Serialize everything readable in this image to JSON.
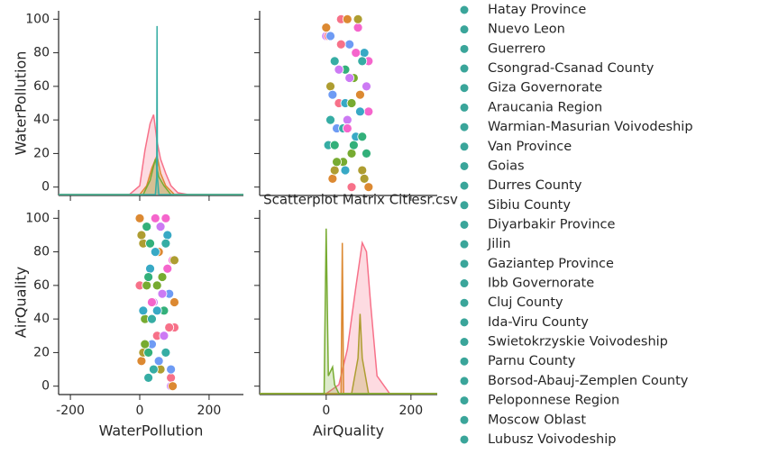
{
  "title": "Scatterplot Matrix Citiesr.csv",
  "legend": {
    "color": "#3aa59a",
    "entries": [
      "Hatay Province",
      "Nuevo Leon",
      "Guerrero",
      "Csongrad-Csanad County",
      "Giza Governorate",
      "Araucania Region",
      "Warmian-Masurian Voivodeship",
      "Van Province",
      "Goias",
      "Durres County",
      "Sibiu County",
      "Diyarbakir Province",
      "Jilin",
      "Gaziantep Province",
      "Ibb Governorate",
      "Cluj County",
      "Ida-Viru County",
      "Swietokrzyskie Voivodeship",
      "Parnu County",
      "Borsod-Abauj-Zemplen County",
      "Peloponnese Region",
      "Moscow Oblast",
      "Lubusz Voivodeship"
    ]
  },
  "chart_data": [
    {
      "type": "kde",
      "ylabel": "WaterPollution",
      "xlim": [
        -234,
        299
      ],
      "ylim": [
        -5,
        105
      ],
      "yticks": [
        0,
        20,
        40,
        60,
        80,
        100
      ],
      "density_lim": [
        0,
        1
      ],
      "series": [
        {
          "color": "#f77189",
          "x": [
            -234,
            -30,
            0,
            15,
            30,
            40,
            50,
            60,
            75,
            90,
            110,
            140,
            299
          ],
          "values": [
            0,
            0,
            0.05,
            0.25,
            0.4,
            0.45,
            0.3,
            0.2,
            0.12,
            0.05,
            0.01,
            0,
            0
          ]
        },
        {
          "color": "#dc8932",
          "x": [
            -234,
            0,
            20,
            35,
            50,
            60,
            75,
            100,
            299
          ],
          "values": [
            0,
            0,
            0.05,
            0.15,
            0.22,
            0.12,
            0.05,
            0,
            0
          ]
        },
        {
          "color": "#77ab31",
          "x": [
            -234,
            10,
            30,
            45,
            55,
            70,
            90,
            299
          ],
          "values": [
            0,
            0,
            0.08,
            0.2,
            0.1,
            0.05,
            0,
            0
          ]
        },
        {
          "color": "#36ada4",
          "x": [
            -234,
            45,
            49,
            50,
            51,
            55,
            299
          ],
          "values": [
            0,
            0,
            0.1,
            0.95,
            0.1,
            0,
            0
          ]
        }
      ]
    },
    {
      "type": "scatter",
      "xlim": [
        -157,
        262
      ],
      "ylim": [
        -5,
        105
      ],
      "size": 5,
      "palette": [
        "#f77189",
        "#dc8932",
        "#ae9d31",
        "#77ab31",
        "#33b07a",
        "#36ada4",
        "#38a9c5",
        "#6e9bf4",
        "#cc7af4",
        "#f565cc"
      ],
      "x": [
        60,
        15,
        85,
        40,
        95,
        5,
        70,
        25,
        50,
        100,
        30,
        80,
        10,
        65,
        45,
        20,
        90,
        55,
        0,
        75,
        35,
        100,
        20,
        60,
        85,
        10,
        45,
        95,
        30,
        70,
        5,
        50,
        90,
        25,
        65,
        40,
        80,
        15,
        55,
        100,
        35,
        0,
        75,
        60,
        20,
        85,
        45,
        10,
        95,
        50
      ],
      "y": [
        0,
        5,
        10,
        15,
        20,
        25,
        30,
        35,
        40,
        45,
        50,
        55,
        60,
        65,
        70,
        75,
        80,
        85,
        90,
        95,
        100,
        0,
        10,
        20,
        30,
        40,
        50,
        60,
        70,
        80,
        90,
        100,
        5,
        15,
        25,
        35,
        45,
        55,
        65,
        75,
        85,
        95,
        100,
        50,
        25,
        75,
        10,
        90,
        60,
        35
      ]
    },
    {
      "type": "scatter",
      "xlabel": "WaterPollution",
      "ylabel": "AirQuality",
      "xlim": [
        -234,
        299
      ],
      "xticks": [
        -200,
        0,
        200
      ],
      "ylim": [
        -5,
        105
      ],
      "yticks": [
        0,
        20,
        40,
        60,
        80,
        100
      ],
      "size": 5,
      "palette": [
        "#f77189",
        "#dc8932",
        "#ae9d31",
        "#77ab31",
        "#33b07a",
        "#36ada4",
        "#38a9c5",
        "#6e9bf4",
        "#cc7af4",
        "#f565cc"
      ],
      "x": [
        0,
        5,
        10,
        15,
        20,
        25,
        30,
        35,
        40,
        45,
        50,
        55,
        60,
        65,
        70,
        75,
        80,
        85,
        90,
        95,
        100,
        0,
        10,
        20,
        30,
        40,
        50,
        60,
        70,
        80,
        90,
        100,
        5,
        15,
        25,
        35,
        45,
        55,
        65,
        75,
        85,
        95,
        100,
        50,
        25,
        75,
        10,
        90,
        60,
        35
      ],
      "y": [
        60,
        15,
        85,
        40,
        95,
        5,
        70,
        25,
        50,
        100,
        30,
        80,
        10,
        65,
        45,
        20,
        90,
        55,
        0,
        75,
        35,
        100,
        20,
        60,
        85,
        10,
        45,
        95,
        30,
        70,
        5,
        50,
        90,
        25,
        65,
        40,
        80,
        15,
        55,
        100,
        35,
        0,
        75,
        60,
        20,
        85,
        45,
        10,
        95,
        50
      ]
    },
    {
      "type": "kde",
      "xlabel": "AirQuality",
      "xlim": [
        -157,
        262
      ],
      "xticks": [
        0,
        200
      ],
      "ylim": [
        -5,
        105
      ],
      "density_lim": [
        0,
        1
      ],
      "series": [
        {
          "color": "#f77189",
          "x": [
            -157,
            0,
            30,
            50,
            70,
            85,
            95,
            105,
            120,
            150,
            262
          ],
          "values": [
            0,
            0,
            0.05,
            0.25,
            0.6,
            0.85,
            0.8,
            0.5,
            0.1,
            0,
            0
          ]
        },
        {
          "color": "#dc8932",
          "x": [
            -157,
            35,
            38,
            41,
            262
          ],
          "values": [
            0,
            0,
            0.85,
            0,
            0
          ]
        },
        {
          "color": "#ae9d31",
          "x": [
            -157,
            60,
            75,
            80,
            85,
            100,
            262
          ],
          "values": [
            0,
            0,
            0.2,
            0.45,
            0.2,
            0,
            0
          ]
        },
        {
          "color": "#77ab31",
          "x": [
            -157,
            -5,
            0,
            5,
            15,
            20,
            30,
            262
          ],
          "values": [
            0,
            0,
            0.93,
            0.1,
            0.15,
            0.05,
            0,
            0
          ]
        }
      ]
    }
  ]
}
